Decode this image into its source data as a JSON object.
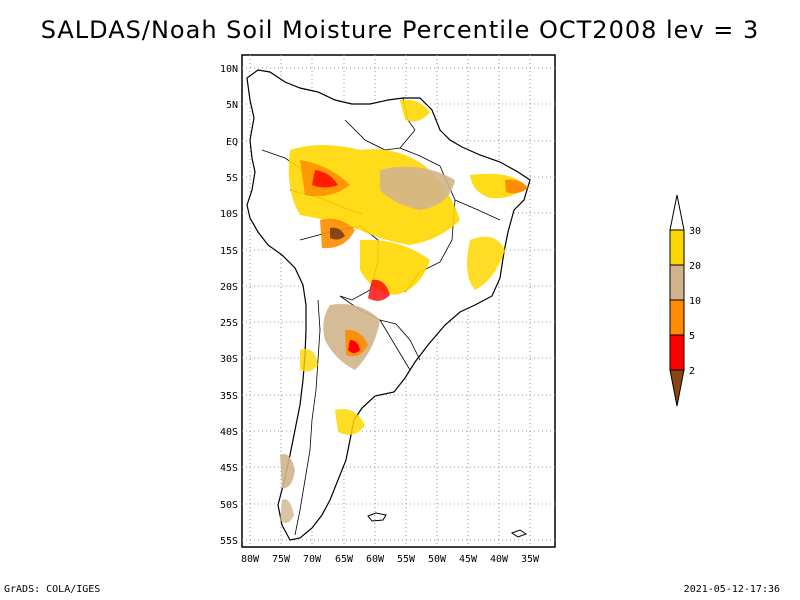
{
  "title": "SALDAS/Noah Soil Moisture Percentile OCT2008 lev = 3",
  "footer": {
    "left": "GrADS: COLA/IGES",
    "right": "2021-05-12-17:36"
  },
  "map": {
    "region": "South America",
    "lat_ticks": [
      "10N",
      "5N",
      "EQ",
      "5S",
      "10S",
      "15S",
      "20S",
      "25S",
      "30S",
      "35S",
      "40S",
      "45S",
      "50S",
      "55S"
    ],
    "lon_ticks": [
      "80W",
      "75W",
      "70W",
      "65W",
      "60W",
      "55W",
      "50W",
      "45W",
      "40W",
      "35W"
    ],
    "grid": true
  },
  "colorbar": {
    "labels": [
      "2",
      "5",
      "10",
      "20",
      "30"
    ],
    "colors": [
      "#8B4513",
      "#FF0000",
      "#FF8C00",
      "#D2B48C",
      "#FFD700",
      "#FFFFFF"
    ]
  }
}
